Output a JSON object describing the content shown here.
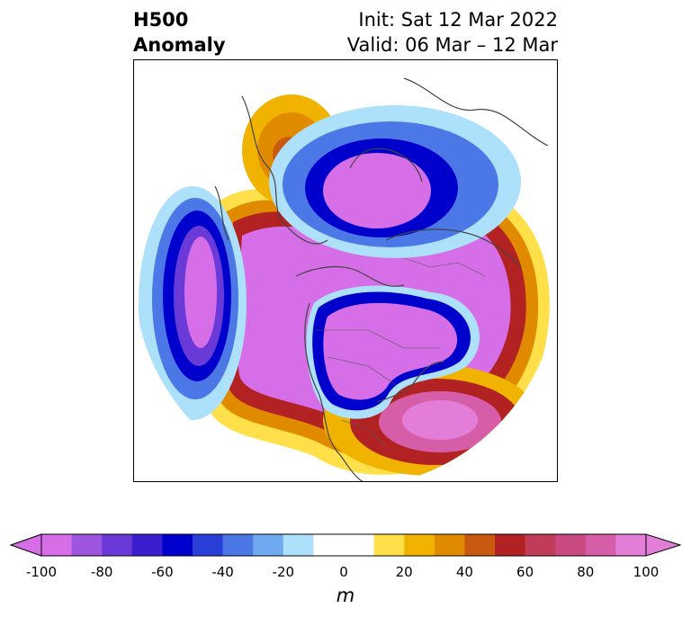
{
  "title": {
    "left_line1": "H500",
    "left_line2": "Anomaly",
    "right_line1": "Init: Sat 12 Mar 2022",
    "right_line2": "Valid: 06 Mar – 12 Mar"
  },
  "colorbar": {
    "unit": "m",
    "min": -100,
    "max": 100,
    "ticks": [
      "-100",
      "-80",
      "-60",
      "-40",
      "-20",
      "0",
      "20",
      "40",
      "60",
      "80",
      "100"
    ],
    "colors": [
      "#d66ee8",
      "#9e55e0",
      "#6a3ad8",
      "#3a1fcf",
      "#0000cc",
      "#2a3fd8",
      "#4b78e6",
      "#6faaf0",
      "#ade0fa",
      "#ffffff",
      "#ffffff",
      "#ffe04a",
      "#f0b400",
      "#e08a00",
      "#c85a10",
      "#b22222",
      "#c03c58",
      "#c94a80",
      "#d65ea8",
      "#e27ed8"
    ],
    "under_color": "#d66ee8",
    "over_color": "#e27ed8"
  },
  "map": {
    "projection": "polar-stereographic-north",
    "features": [
      "500 hPa height anomaly contours",
      "coastlines",
      "country borders",
      "state/province borders"
    ]
  }
}
